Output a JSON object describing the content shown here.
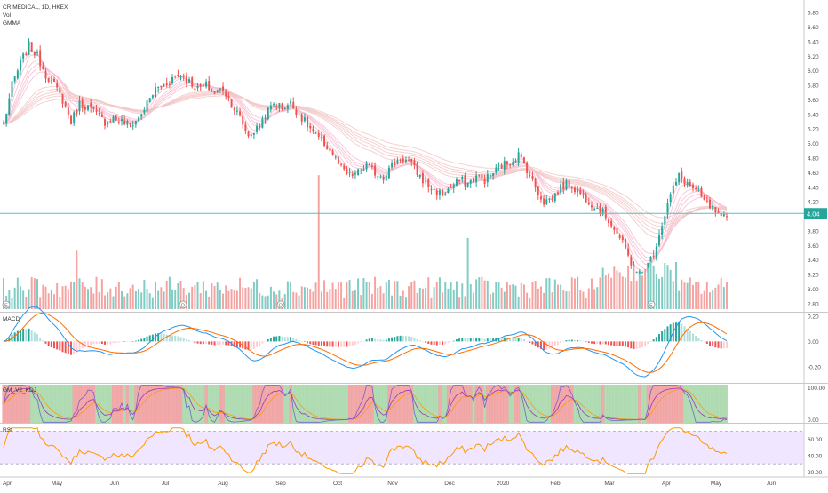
{
  "header": {
    "symbol_line": "CR MEDICAL, 1D, HKEX",
    "vol_label": "Vol",
    "gmma_label": "GMMA"
  },
  "panes": {
    "macd_label": "MACD",
    "kdj_label": "GM_V2_KDJ",
    "rsi_label": "RSI"
  },
  "colors": {
    "up": "#26a69a",
    "down": "#ef5350",
    "vol_up": "#80cbc4",
    "vol_down": "#f4a3a1",
    "price_line": "#4fc3c7",
    "macd_line": "#2196f3",
    "signal_line": "#ff6d00",
    "kdj_k": "#9c27b0",
    "kdj_d": "#ff9800",
    "kdj_j": "#4caf50",
    "kdj_bg_up": "#a5d6a7",
    "kdj_bg_down": "#ef9a9a",
    "rsi_line": "#ff9800",
    "rsi_band": "#e8d5ff"
  },
  "chart_data": {
    "type": "candlestick",
    "symbol": "CR MEDICAL",
    "interval": "1D",
    "exchange": "HKEX",
    "last_price": "4.04",
    "price_axis": {
      "ylim": [
        2.7,
        6.9
      ],
      "ticks": [
        "6.80",
        "6.60",
        "6.40",
        "6.20",
        "6.00",
        "5.80",
        "5.60",
        "5.40",
        "5.20",
        "5.00",
        "4.80",
        "4.60",
        "4.40",
        "4.20",
        "4.00",
        "3.80",
        "3.60",
        "3.40",
        "3.20",
        "3.00",
        "2.80"
      ]
    },
    "macd_axis": {
      "ylim": [
        -0.32,
        0.22
      ],
      "ticks": [
        "0.20",
        "0.00",
        "-0.20"
      ]
    },
    "kdj_axis": {
      "ylim": [
        -10,
        110
      ],
      "ticks": [
        "100.00",
        "0.00"
      ]
    },
    "rsi_axis": {
      "ylim": [
        15,
        78
      ],
      "ticks": [
        "60.00",
        "40.00",
        "20.00"
      ]
    },
    "x_axis": {
      "labels": [
        "Apr",
        "May",
        "Jun",
        "Jul",
        "Aug",
        "Sep",
        "Oct",
        "Nov",
        "Dec",
        "2020",
        "Feb",
        "Mar",
        "Apr",
        "May",
        "Jun"
      ]
    },
    "event_markers": [
      "E",
      "D",
      "D",
      "E",
      "E"
    ],
    "close_anchors": [
      [
        0,
        5.25
      ],
      [
        3,
        5.8
      ],
      [
        6,
        6.1
      ],
      [
        9,
        6.35
      ],
      [
        12,
        6.2
      ],
      [
        15,
        5.95
      ],
      [
        18,
        5.8
      ],
      [
        21,
        5.6
      ],
      [
        24,
        5.3
      ],
      [
        27,
        5.55
      ],
      [
        30,
        5.5
      ],
      [
        33,
        5.4
      ],
      [
        36,
        5.3
      ],
      [
        39,
        5.35
      ],
      [
        42,
        5.3
      ],
      [
        45,
        5.25
      ],
      [
        48,
        5.35
      ],
      [
        51,
        5.55
      ],
      [
        54,
        5.75
      ],
      [
        57,
        5.8
      ],
      [
        60,
        5.9
      ],
      [
        63,
        5.95
      ],
      [
        66,
        5.85
      ],
      [
        69,
        5.75
      ],
      [
        72,
        5.8
      ],
      [
        75,
        5.7
      ],
      [
        78,
        5.75
      ],
      [
        81,
        5.55
      ],
      [
        84,
        5.35
      ],
      [
        87,
        5.1
      ],
      [
        90,
        5.2
      ],
      [
        93,
        5.4
      ],
      [
        96,
        5.55
      ],
      [
        99,
        5.5
      ],
      [
        102,
        5.55
      ],
      [
        105,
        5.4
      ],
      [
        108,
        5.25
      ],
      [
        111,
        5.1
      ],
      [
        114,
        5.0
      ],
      [
        117,
        4.85
      ],
      [
        120,
        4.65
      ],
      [
        123,
        4.55
      ],
      [
        126,
        4.6
      ],
      [
        129,
        4.7
      ],
      [
        132,
        4.6
      ],
      [
        135,
        4.55
      ],
      [
        138,
        4.7
      ],
      [
        141,
        4.8
      ],
      [
        144,
        4.75
      ],
      [
        147,
        4.6
      ],
      [
        150,
        4.45
      ],
      [
        153,
        4.35
      ],
      [
        156,
        4.3
      ],
      [
        159,
        4.4
      ],
      [
        162,
        4.5
      ],
      [
        165,
        4.45
      ],
      [
        168,
        4.55
      ],
      [
        171,
        4.5
      ],
      [
        174,
        4.6
      ],
      [
        177,
        4.7
      ],
      [
        180,
        4.75
      ],
      [
        183,
        4.85
      ],
      [
        186,
        4.65
      ],
      [
        189,
        4.4
      ],
      [
        192,
        4.2
      ],
      [
        195,
        4.25
      ],
      [
        198,
        4.4
      ],
      [
        201,
        4.45
      ],
      [
        204,
        4.35
      ],
      [
        207,
        4.25
      ],
      [
        210,
        4.15
      ],
      [
        213,
        4.05
      ],
      [
        216,
        3.9
      ],
      [
        219,
        3.7
      ],
      [
        222,
        3.45
      ],
      [
        225,
        3.2
      ],
      [
        228,
        3.25
      ],
      [
        231,
        3.5
      ],
      [
        234,
        3.9
      ],
      [
        237,
        4.3
      ],
      [
        240,
        4.55
      ],
      [
        243,
        4.45
      ],
      [
        246,
        4.35
      ],
      [
        249,
        4.2
      ],
      [
        252,
        4.1
      ],
      [
        255,
        3.95
      ],
      [
        257,
        4.0
      ]
    ],
    "volume_spikes": [
      [
        26,
        2.3
      ],
      [
        112,
        5.4
      ],
      [
        165,
        2.8
      ]
    ]
  }
}
